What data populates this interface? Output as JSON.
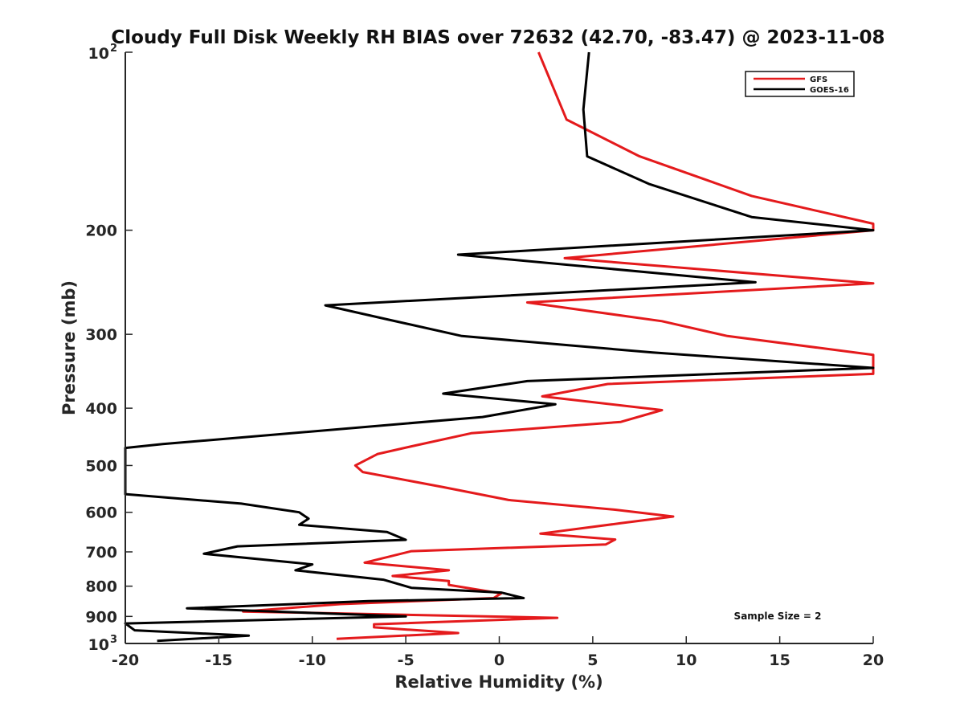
{
  "chart_data": {
    "type": "line",
    "title": "Cloudy Full Disk Weekly RH BIAS over 72632 (42.70, -83.47) @ 2023-11-08",
    "xlabel": "Relative Humidity (%)",
    "ylabel": "Pressure (mb)",
    "xlim": [
      -20,
      20
    ],
    "ylim": [
      100,
      1000
    ],
    "y_scale": "log",
    "y_reversed": true,
    "grid": false,
    "legend_position": "top-right",
    "x_ticks": [
      "-20",
      "-15",
      "-10",
      "-5",
      "0",
      "5",
      "10",
      "15",
      "20"
    ],
    "y_ticks": [
      {
        "value": 100,
        "base": "10",
        "exp": "2"
      },
      {
        "value": 200,
        "label": "200"
      },
      {
        "value": 300,
        "label": "300"
      },
      {
        "value": 400,
        "label": "400"
      },
      {
        "value": 500,
        "label": "500"
      },
      {
        "value": 600,
        "label": "600"
      },
      {
        "value": 700,
        "label": "700"
      },
      {
        "value": 800,
        "label": "800"
      },
      {
        "value": 900,
        "label": "900"
      },
      {
        "value": 1000,
        "base": "10",
        "exp": "3"
      }
    ],
    "annotation": "Sample Size = 2",
    "series": [
      {
        "name": "GFS",
        "color": "#e41a1c",
        "points": [
          [
            2.1,
            100
          ],
          [
            3.6,
            130
          ],
          [
            7.5,
            150
          ],
          [
            13.5,
            175
          ],
          [
            20,
            195
          ],
          [
            20,
            200
          ],
          [
            3.5,
            223
          ],
          [
            20,
            246
          ],
          [
            1.5,
            265
          ],
          [
            8.7,
            285
          ],
          [
            12.2,
            302
          ],
          [
            20,
            325
          ],
          [
            20,
            350
          ],
          [
            5.8,
            364
          ],
          [
            2.3,
            382
          ],
          [
            8.7,
            403
          ],
          [
            6.5,
            422
          ],
          [
            -1.5,
            441
          ],
          [
            -4.7,
            464
          ],
          [
            -6.5,
            478
          ],
          [
            -7.7,
            500
          ],
          [
            -7.3,
            513
          ],
          [
            -3.0,
            544
          ],
          [
            0.5,
            572
          ],
          [
            6.2,
            594
          ],
          [
            9.3,
            610
          ],
          [
            6.5,
            626
          ],
          [
            2.2,
            652
          ],
          [
            6.2,
            667
          ],
          [
            5.7,
            680
          ],
          [
            -4.7,
            698
          ],
          [
            -7.2,
            730
          ],
          [
            -2.7,
            752
          ],
          [
            -5.7,
            769
          ],
          [
            -2.7,
            784
          ],
          [
            -2.7,
            796
          ],
          [
            0.1,
            823
          ],
          [
            -0.3,
            838
          ],
          [
            -8.5,
            858
          ],
          [
            -13.7,
            883
          ],
          [
            3.1,
            905
          ],
          [
            -6.7,
            928
          ],
          [
            -6.7,
            939
          ],
          [
            -2.2,
            960
          ],
          [
            -8.7,
            982
          ]
        ]
      },
      {
        "name": "GOES-16",
        "color": "#000000",
        "points": [
          [
            4.8,
            100
          ],
          [
            4.5,
            125
          ],
          [
            4.7,
            150
          ],
          [
            8.0,
            167
          ],
          [
            13.5,
            190
          ],
          [
            20,
            200
          ],
          [
            -2.2,
            220
          ],
          [
            13.7,
            245
          ],
          [
            -9.3,
            268
          ],
          [
            -6.0,
            283
          ],
          [
            -2.0,
            302
          ],
          [
            8.2,
            322
          ],
          [
            20,
            342
          ],
          [
            1.5,
            360
          ],
          [
            -3.0,
            378
          ],
          [
            3.0,
            394
          ],
          [
            -0.9,
            414
          ],
          [
            -18.0,
            460
          ],
          [
            -20,
            467
          ],
          [
            -20,
            559
          ],
          [
            -13.8,
            580
          ],
          [
            -10.7,
            600
          ],
          [
            -10.2,
            615
          ],
          [
            -10.7,
            630
          ],
          [
            -6.0,
            648
          ],
          [
            -5.0,
            668
          ],
          [
            -14.0,
            685
          ],
          [
            -15.8,
            705
          ],
          [
            -10.0,
            735
          ],
          [
            -10.9,
            752
          ],
          [
            -6.2,
            780
          ],
          [
            -4.7,
            805
          ],
          [
            0.1,
            820
          ],
          [
            1.3,
            838
          ],
          [
            -7.0,
            848
          ],
          [
            -16.7,
            872
          ],
          [
            -5.0,
            900
          ],
          [
            -20,
            925
          ],
          [
            -19.5,
            950
          ],
          [
            -13.4,
            970
          ],
          [
            -18.3,
            990
          ]
        ]
      }
    ]
  }
}
